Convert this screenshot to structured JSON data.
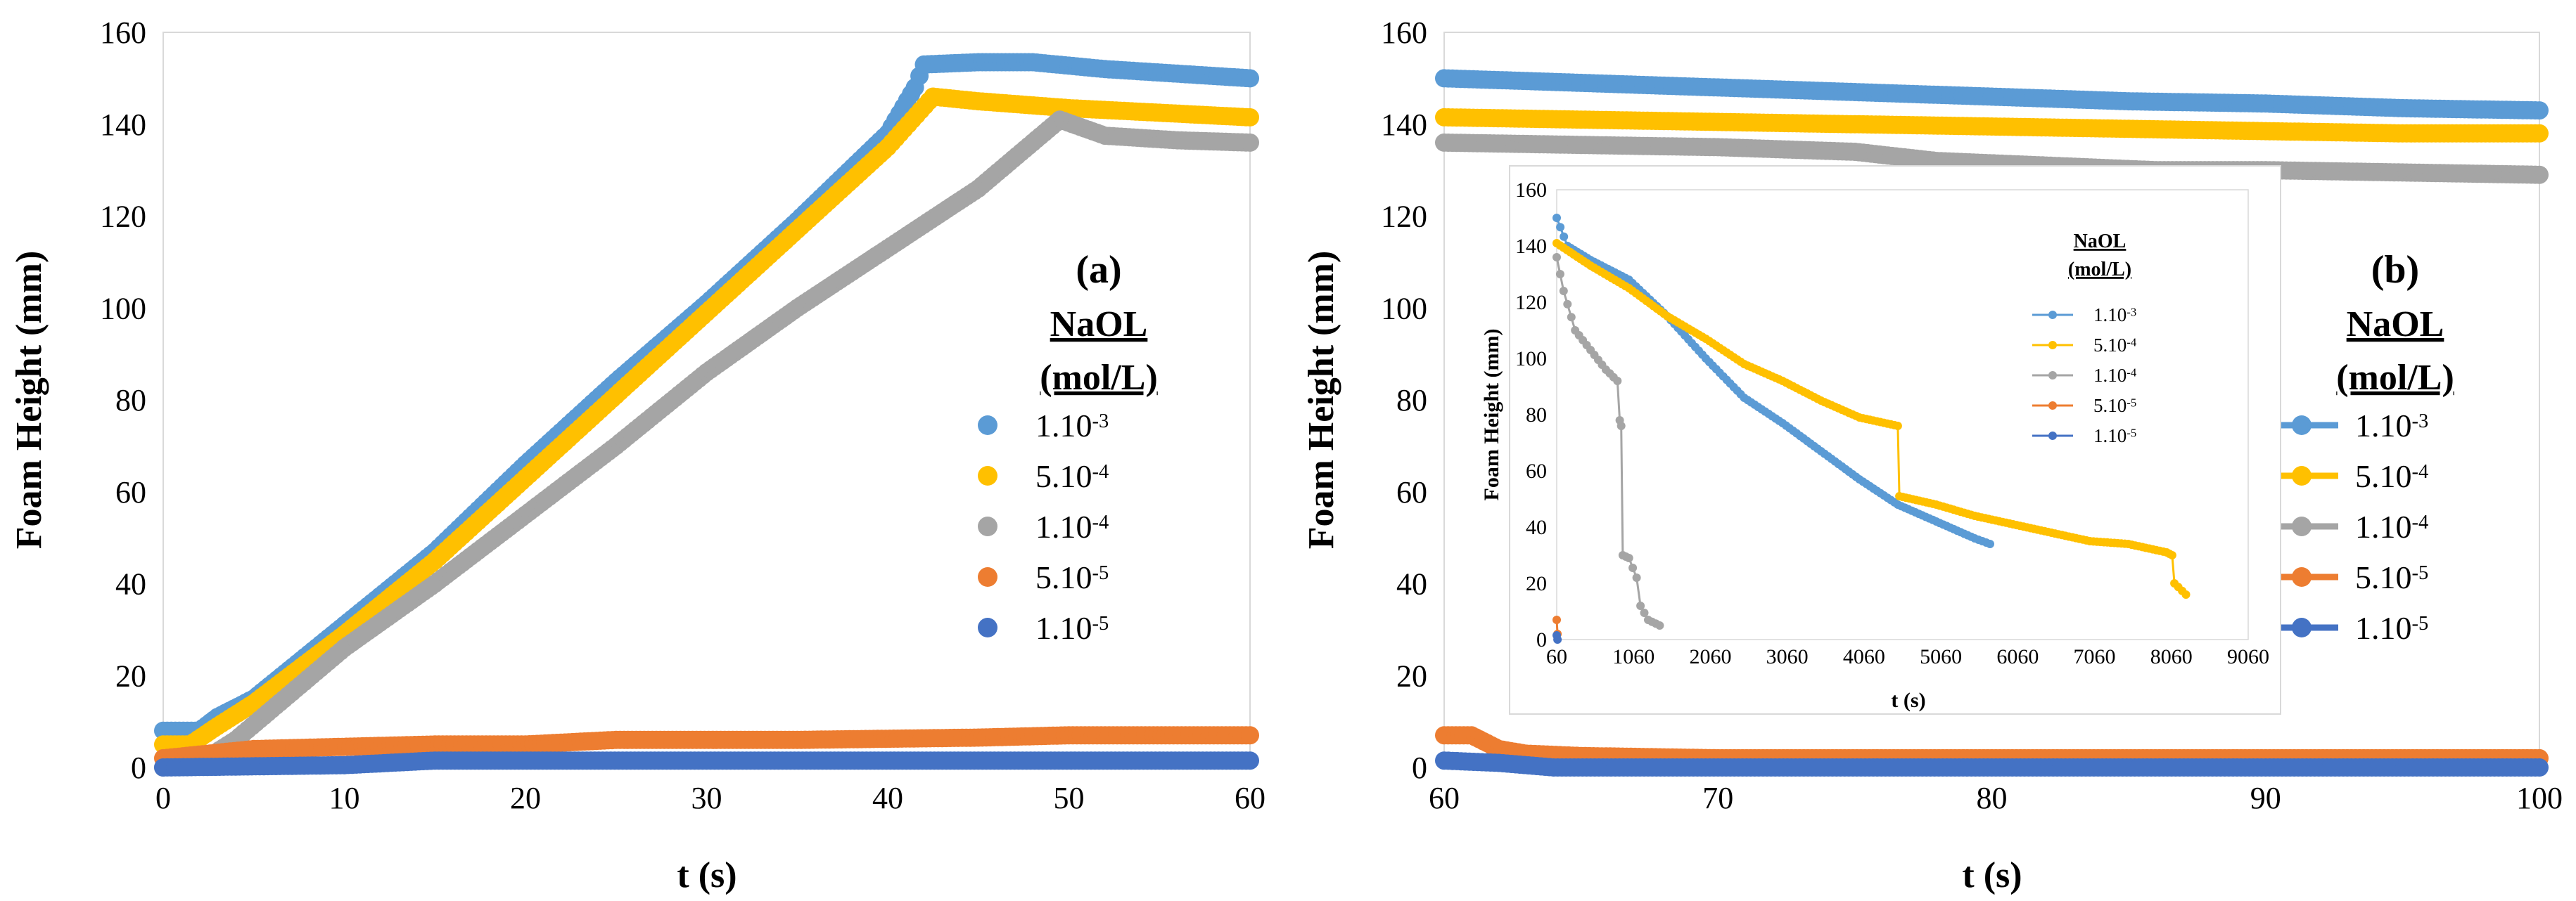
{
  "legend_title_line1": "NaOL",
  "legend_title_line2": "(mol/L)",
  "series_meta": [
    {
      "key": "s1",
      "name": "1.10",
      "exp": "-3",
      "color": "#5b9bd5"
    },
    {
      "key": "s2",
      "name": "5.10",
      "exp": "-4",
      "color": "#ffc000"
    },
    {
      "key": "s3",
      "name": "1.10",
      "exp": "-4",
      "color": "#a5a5a5"
    },
    {
      "key": "s4",
      "name": "5.10",
      "exp": "-5",
      "color": "#ed7d31"
    },
    {
      "key": "s5",
      "name": "1.10",
      "exp": "-5",
      "color": "#4472c4"
    }
  ],
  "chart_data": [
    {
      "id": "a",
      "label": "(a)",
      "type": "scatter",
      "xlabel": "t (s)",
      "ylabel": "Foam Height (mm)",
      "xlim": [
        0,
        60
      ],
      "ylim": [
        0,
        160
      ],
      "xticks": [
        0,
        10,
        20,
        30,
        40,
        50,
        60
      ],
      "yticks": [
        0,
        20,
        40,
        60,
        80,
        100,
        120,
        140,
        160
      ],
      "legend_position": "right",
      "series": [
        {
          "key": "s1",
          "points": [
            [
              0,
              8
            ],
            [
              2,
              8
            ],
            [
              3,
              11
            ],
            [
              5,
              15
            ],
            [
              10,
              31
            ],
            [
              15,
              47
            ],
            [
              20,
              66
            ],
            [
              25,
              84
            ],
            [
              30,
              101
            ],
            [
              35,
              119
            ],
            [
              40,
              138
            ],
            [
              41.5,
              148
            ],
            [
              42,
              153
            ],
            [
              45,
              153.5
            ],
            [
              48,
              153.5
            ],
            [
              52,
              152
            ],
            [
              56,
              151
            ],
            [
              60,
              150
            ]
          ]
        },
        {
          "key": "s2",
          "points": [
            [
              0,
              5
            ],
            [
              1.5,
              5
            ],
            [
              3,
              9
            ],
            [
              5,
              14
            ],
            [
              10,
              29
            ],
            [
              15,
              45
            ],
            [
              20,
              63
            ],
            [
              25,
              81
            ],
            [
              30,
              99
            ],
            [
              35,
              117
            ],
            [
              40,
              135
            ],
            [
              42.5,
              146
            ],
            [
              45,
              145
            ],
            [
              50,
              143.5
            ],
            [
              55,
              142.5
            ],
            [
              60,
              141.5
            ]
          ]
        },
        {
          "key": "s3",
          "points": [
            [
              0,
              0
            ],
            [
              2,
              1
            ],
            [
              4,
              6
            ],
            [
              10,
              26
            ],
            [
              15,
              40
            ],
            [
              20,
              55
            ],
            [
              25,
              70
            ],
            [
              30,
              86
            ],
            [
              35,
              100
            ],
            [
              40,
              113
            ],
            [
              45,
              126
            ],
            [
              48,
              136
            ],
            [
              49.5,
              141
            ],
            [
              52,
              137.5
            ],
            [
              56,
              136.5
            ],
            [
              60,
              136
            ]
          ]
        },
        {
          "key": "s4",
          "points": [
            [
              0,
              2
            ],
            [
              5,
              4
            ],
            [
              15,
              5
            ],
            [
              20,
              5
            ],
            [
              25,
              6
            ],
            [
              35,
              6
            ],
            [
              45,
              6.5
            ],
            [
              50,
              7
            ],
            [
              60,
              7
            ]
          ]
        },
        {
          "key": "s5",
          "points": [
            [
              0,
              0
            ],
            [
              10,
              0.5
            ],
            [
              15,
              1.5
            ],
            [
              30,
              1.5
            ],
            [
              45,
              1.5
            ],
            [
              55,
              1.5
            ],
            [
              60,
              1.5
            ]
          ]
        }
      ]
    },
    {
      "id": "b",
      "label": "(b)",
      "type": "scatter",
      "xlabel": "t (s)",
      "ylabel": "Foam Height (mm)",
      "xlim": [
        60,
        100
      ],
      "ylim": [
        0,
        160
      ],
      "xticks": [
        60,
        70,
        80,
        90,
        100
      ],
      "yticks": [
        0,
        20,
        40,
        60,
        80,
        100,
        120,
        140,
        160
      ],
      "legend_position": "right",
      "series": [
        {
          "key": "s1",
          "points": [
            [
              60,
              150
            ],
            [
              65,
              149
            ],
            [
              70,
              148
            ],
            [
              75,
              147
            ],
            [
              80,
              146
            ],
            [
              85,
              145
            ],
            [
              90,
              144.5
            ],
            [
              95,
              143.5
            ],
            [
              100,
              143
            ]
          ]
        },
        {
          "key": "s2",
          "points": [
            [
              60,
              141.5
            ],
            [
              65,
              141
            ],
            [
              70,
              140.5
            ],
            [
              75,
              140
            ],
            [
              80,
              139.5
            ],
            [
              85,
              139
            ],
            [
              90,
              138.5
            ],
            [
              95,
              138
            ],
            [
              100,
              138
            ]
          ]
        },
        {
          "key": "s3",
          "points": [
            [
              60,
              136
            ],
            [
              65,
              135.5
            ],
            [
              70,
              135
            ],
            [
              75,
              134
            ],
            [
              78,
              132
            ],
            [
              82,
              131
            ],
            [
              86,
              130
            ],
            [
              90,
              130
            ],
            [
              95,
              129.5
            ],
            [
              100,
              129
            ]
          ]
        },
        {
          "key": "s4",
          "points": [
            [
              60,
              7
            ],
            [
              61,
              7
            ],
            [
              62,
              4
            ],
            [
              63,
              3
            ],
            [
              65,
              2.5
            ],
            [
              70,
              2
            ],
            [
              80,
              2
            ],
            [
              90,
              2
            ],
            [
              100,
              2
            ]
          ]
        },
        {
          "key": "s5",
          "points": [
            [
              60,
              1.5
            ],
            [
              62,
              1
            ],
            [
              64,
              0
            ],
            [
              70,
              0
            ],
            [
              80,
              0
            ],
            [
              90,
              0
            ],
            [
              100,
              0
            ]
          ]
        }
      ]
    },
    {
      "id": "b-inset",
      "type": "line",
      "xlabel": "t (s)",
      "ylabel": "Foam Height (mm)",
      "xlim": [
        60,
        9060
      ],
      "ylim": [
        0,
        160
      ],
      "xticks": [
        60,
        1060,
        2060,
        3060,
        4060,
        5060,
        6060,
        7060,
        8060,
        9060
      ],
      "yticks": [
        0,
        20,
        40,
        60,
        80,
        100,
        120,
        140,
        160
      ],
      "legend_position": "top-right",
      "series": [
        {
          "key": "s1",
          "points": [
            [
              60,
              150
            ],
            [
              200,
              140
            ],
            [
              500,
              135
            ],
            [
              1000,
              128
            ],
            [
              1500,
              115
            ],
            [
              2000,
              100
            ],
            [
              2500,
              86
            ],
            [
              3000,
              77
            ],
            [
              3500,
              67
            ],
            [
              4000,
              57
            ],
            [
              4500,
              48
            ],
            [
              5000,
              42
            ],
            [
              5500,
              36
            ],
            [
              5700,
              34
            ]
          ]
        },
        {
          "key": "s2",
          "points": [
            [
              60,
              141
            ],
            [
              500,
              133
            ],
            [
              1000,
              125
            ],
            [
              1500,
              115
            ],
            [
              2000,
              107
            ],
            [
              2500,
              98
            ],
            [
              3000,
              92
            ],
            [
              3500,
              85
            ],
            [
              4000,
              79
            ],
            [
              4500,
              76
            ],
            [
              4520,
              51
            ],
            [
              5000,
              48
            ],
            [
              5500,
              44
            ],
            [
              6000,
              41
            ],
            [
              6500,
              38
            ],
            [
              7000,
              35
            ],
            [
              7500,
              34
            ],
            [
              8000,
              31
            ],
            [
              8070,
              30
            ],
            [
              8100,
              20
            ],
            [
              8250,
              16
            ]
          ]
        },
        {
          "key": "s3",
          "points": [
            [
              60,
              136
            ],
            [
              150,
              124
            ],
            [
              300,
              110
            ],
            [
              500,
              103
            ],
            [
              700,
              96
            ],
            [
              850,
              92
            ],
            [
              880,
              78
            ],
            [
              900,
              76
            ],
            [
              920,
              30
            ],
            [
              1000,
              29
            ],
            [
              1100,
              22
            ],
            [
              1150,
              12
            ],
            [
              1250,
              7
            ],
            [
              1400,
              5
            ]
          ]
        },
        {
          "key": "s4",
          "points": [
            [
              60,
              7
            ],
            [
              70,
              2
            ]
          ]
        },
        {
          "key": "s5",
          "points": [
            [
              60,
              1.5
            ],
            [
              70,
              0
            ]
          ]
        }
      ]
    }
  ]
}
